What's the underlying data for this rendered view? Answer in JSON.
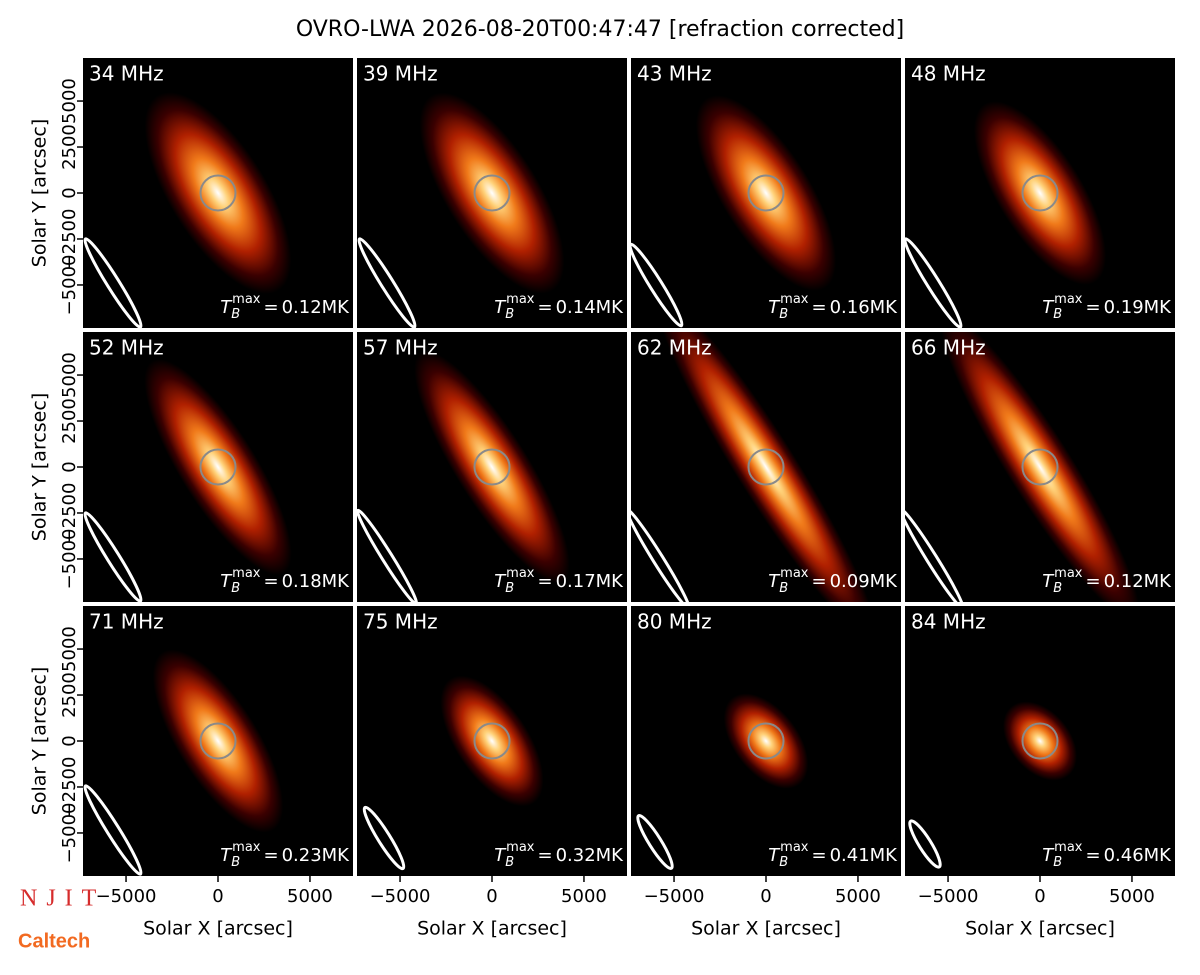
{
  "chart_data": {
    "type": "image-grid",
    "title": "OVRO-LWA 2026-08-20T00:47:47 [refraction corrected]",
    "xlabel": "Solar X [arcsec]",
    "ylabel": "Solar Y [arcsec]",
    "categories": [
      "34 MHz",
      "39 MHz",
      "43 MHz",
      "48 MHz",
      "52 MHz",
      "57 MHz",
      "62 MHz",
      "66 MHz",
      "71 MHz",
      "75 MHz",
      "80 MHz",
      "84 MHz"
    ],
    "values": [
      0.12,
      0.14,
      0.16,
      0.19,
      0.18,
      0.17,
      0.09,
      0.12,
      0.23,
      0.32,
      0.41,
      0.46
    ],
    "value_labels": [
      "0.12MK",
      "0.14MK",
      "0.16MK",
      "0.19MK",
      "0.18MK",
      "0.17MK",
      "0.09MK",
      "0.12MK",
      "0.23MK",
      "0.32MK",
      "0.41MK",
      "0.46MK"
    ],
    "value_symbol": {
      "base": "T",
      "sub": "B",
      "sup": "max",
      "eq": "="
    },
    "xlim": [
      -7340,
      7340
    ],
    "ylim": [
      -7340,
      7340
    ],
    "xticks": [
      {
        "value": -5000,
        "label": "−5000"
      },
      0,
      5000
    ],
    "yticks": [
      {
        "value": -5000,
        "label": "−5000"
      },
      {
        "value": -2500,
        "label": "−2500"
      },
      0,
      2500,
      5000
    ],
    "colormap": [
      "#ffffff",
      "#ffd27a",
      "#f07a1a",
      "#b02000",
      "#3a0000",
      "#000000"
    ],
    "logos": [
      "NJIT",
      "Caltech"
    ]
  }
}
